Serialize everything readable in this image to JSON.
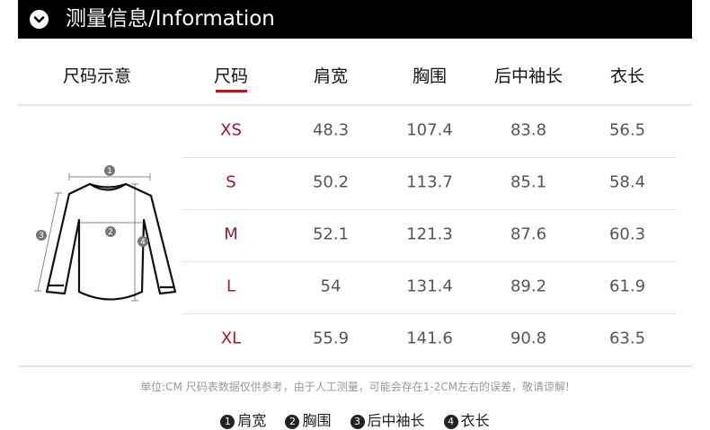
{
  "header": {
    "title": "测量信息/Information",
    "icon": "chevron-down-circle-icon"
  },
  "columns": [
    "尺码示意",
    "尺码",
    "肩宽",
    "胸围",
    "后中袖长",
    "衣长"
  ],
  "rows": [
    {
      "size": "XS",
      "values": [
        "48.3",
        "107.4",
        "83.8",
        "56.5"
      ]
    },
    {
      "size": "S",
      "values": [
        "50.2",
        "113.7",
        "85.1",
        "58.4"
      ]
    },
    {
      "size": "M",
      "values": [
        "52.1",
        "121.3",
        "87.6",
        "60.3"
      ]
    },
    {
      "size": "L",
      "values": [
        "54",
        "131.4",
        "89.2",
        "61.9"
      ]
    },
    {
      "size": "XL",
      "values": [
        "55.9",
        "141.6",
        "90.8",
        "63.5"
      ]
    }
  ],
  "diagram_markers": [
    "1",
    "2",
    "3",
    "4"
  ],
  "note": "单位:CM 尺码表数据仅供参考，由于人工测量，可能会存在1-2CM左右的误差，敬请谅解!",
  "legend": [
    {
      "num": "1",
      "label": "肩宽"
    },
    {
      "num": "2",
      "label": "胸围"
    },
    {
      "num": "3",
      "label": "后中袖长"
    },
    {
      "num": "4",
      "label": "衣长"
    }
  ],
  "colors": {
    "accent": "#a3152a",
    "header_bg": "#000000"
  }
}
